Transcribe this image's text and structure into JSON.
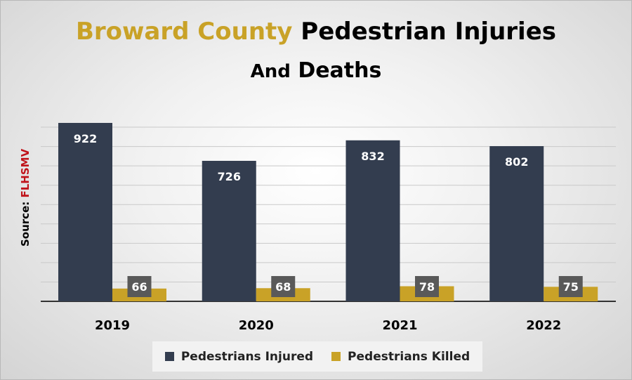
{
  "title": {
    "accent": "Broward County",
    "rest": "Pedestrian Injuries",
    "line2_small": "And",
    "line2": "Deaths"
  },
  "source": {
    "label": "Source:",
    "name": "FLHSMV"
  },
  "colors": {
    "injured": "#333d4f",
    "killed": "#c9a227",
    "label_box": "#595959",
    "accent": "#c9a227"
  },
  "chart_data": {
    "type": "bar",
    "categories": [
      "2019",
      "2020",
      "2021",
      "2022"
    ],
    "series": [
      {
        "name": "Pedestrians Injured",
        "values": [
          922,
          726,
          832,
          802
        ]
      },
      {
        "name": "Pedestrians Killed",
        "values": [
          66,
          68,
          78,
          75
        ]
      }
    ],
    "ylim": [
      0,
      1000
    ],
    "grid": true,
    "legend": "bottom"
  }
}
